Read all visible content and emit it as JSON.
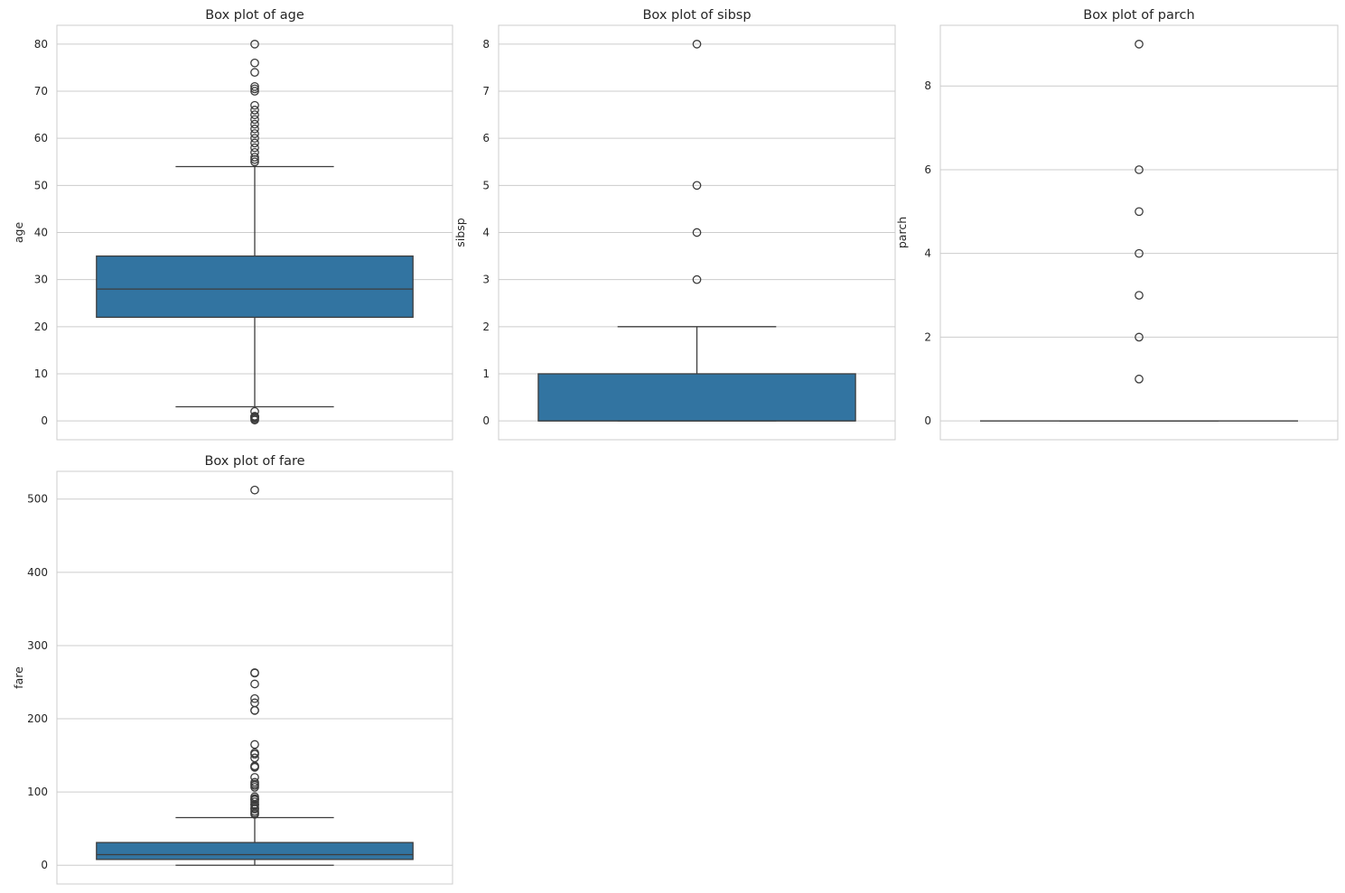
{
  "colors": {
    "box_fill": "#3274a1",
    "line": "#3d3d3d",
    "grid": "#cccccc",
    "frame": "#cccccc"
  },
  "chart_data": [
    {
      "type": "box",
      "title": "Box plot of age",
      "ylabel": "age",
      "ylim": [
        -4,
        84
      ],
      "yticks": [
        0,
        10,
        20,
        30,
        40,
        50,
        60,
        70,
        80
      ],
      "grid": true,
      "q1": 22,
      "median": 28,
      "q3": 35,
      "whisker_low": 3,
      "whisker_high": 54,
      "outliers": [
        0.17,
        0.42,
        0.67,
        0.75,
        0.83,
        0.92,
        1,
        2,
        55,
        55.5,
        56,
        57,
        58,
        59,
        60,
        61,
        62,
        63,
        64,
        65,
        66,
        67,
        70,
        70.5,
        71,
        74,
        76,
        80
      ]
    },
    {
      "type": "box",
      "title": "Box plot of sibsp",
      "ylabel": "sibsp",
      "ylim": [
        -0.4,
        8.4
      ],
      "yticks": [
        0,
        1,
        2,
        3,
        4,
        5,
        6,
        7,
        8
      ],
      "grid": true,
      "q1": 0,
      "median": 0,
      "q3": 1,
      "whisker_low": 0,
      "whisker_high": 2,
      "outliers": [
        3,
        4,
        5,
        8
      ]
    },
    {
      "type": "box",
      "title": "Box plot of parch",
      "ylabel": "parch",
      "ylim": [
        -0.45,
        9.45
      ],
      "yticks": [
        0,
        2,
        4,
        6,
        8
      ],
      "grid": true,
      "q1": 0,
      "median": 0,
      "q3": 0,
      "whisker_low": 0,
      "whisker_high": 0,
      "outliers": [
        1,
        2,
        3,
        4,
        5,
        6,
        9
      ]
    },
    {
      "type": "box",
      "title": "Box plot of fare",
      "ylabel": "fare",
      "ylim": [
        -25.6,
        537.9
      ],
      "yticks": [
        0,
        100,
        200,
        300,
        400,
        500
      ],
      "grid": true,
      "q1": 7.9,
      "median": 14.45,
      "q3": 31,
      "whisker_low": 0,
      "whisker_high": 65,
      "outliers": [
        69.55,
        71.28,
        73.5,
        76.73,
        77.29,
        79.2,
        82.17,
        83.16,
        86.5,
        89.1,
        90,
        91.08,
        93.5,
        106.43,
        108.9,
        110.88,
        113.28,
        120,
        133.65,
        134.5,
        135.63,
        146.52,
        151.55,
        153.46,
        164.87,
        211.34,
        211.5,
        221.78,
        227.53,
        247.52,
        262.38,
        263,
        512.33
      ]
    }
  ]
}
